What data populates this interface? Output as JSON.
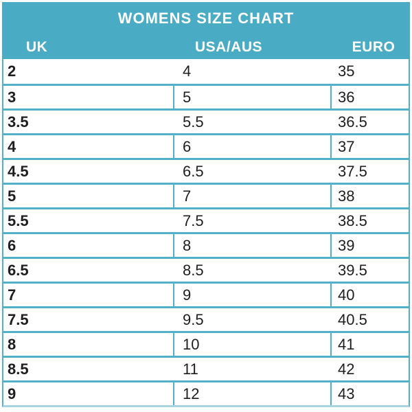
{
  "chart_data": {
    "type": "table",
    "title": "WOMENS SIZE CHART",
    "columns": [
      "UK",
      "USA/AUS",
      "EURO"
    ],
    "rows": [
      [
        "2",
        "4",
        "35"
      ],
      [
        "3",
        "5",
        "36"
      ],
      [
        "3.5",
        "5.5",
        "36.5"
      ],
      [
        "4",
        "6",
        "37"
      ],
      [
        "4.5",
        "6.5",
        "37.5"
      ],
      [
        "5",
        "7",
        "38"
      ],
      [
        "5.5",
        "7.5",
        "38.5"
      ],
      [
        "6",
        "8",
        "39"
      ],
      [
        "6.5",
        "8.5",
        "39.5"
      ],
      [
        "7",
        "9",
        "40"
      ],
      [
        "7.5",
        "9.5",
        "40.5"
      ],
      [
        "8",
        "10",
        "41"
      ],
      [
        "8.5",
        "11",
        "42"
      ],
      [
        "9",
        "12",
        "43"
      ]
    ],
    "layout": {
      "legend": "none",
      "grid": "teal cell borders, alternating rows show internal column dividers"
    }
  },
  "colors": {
    "header_bg": "#49abc4",
    "header_text": "#ffffff",
    "border": "#52b0c9",
    "bottom_border_faded": "#a6d5e2",
    "cell_text": "#1e1e1e",
    "background": "#ffffff"
  }
}
